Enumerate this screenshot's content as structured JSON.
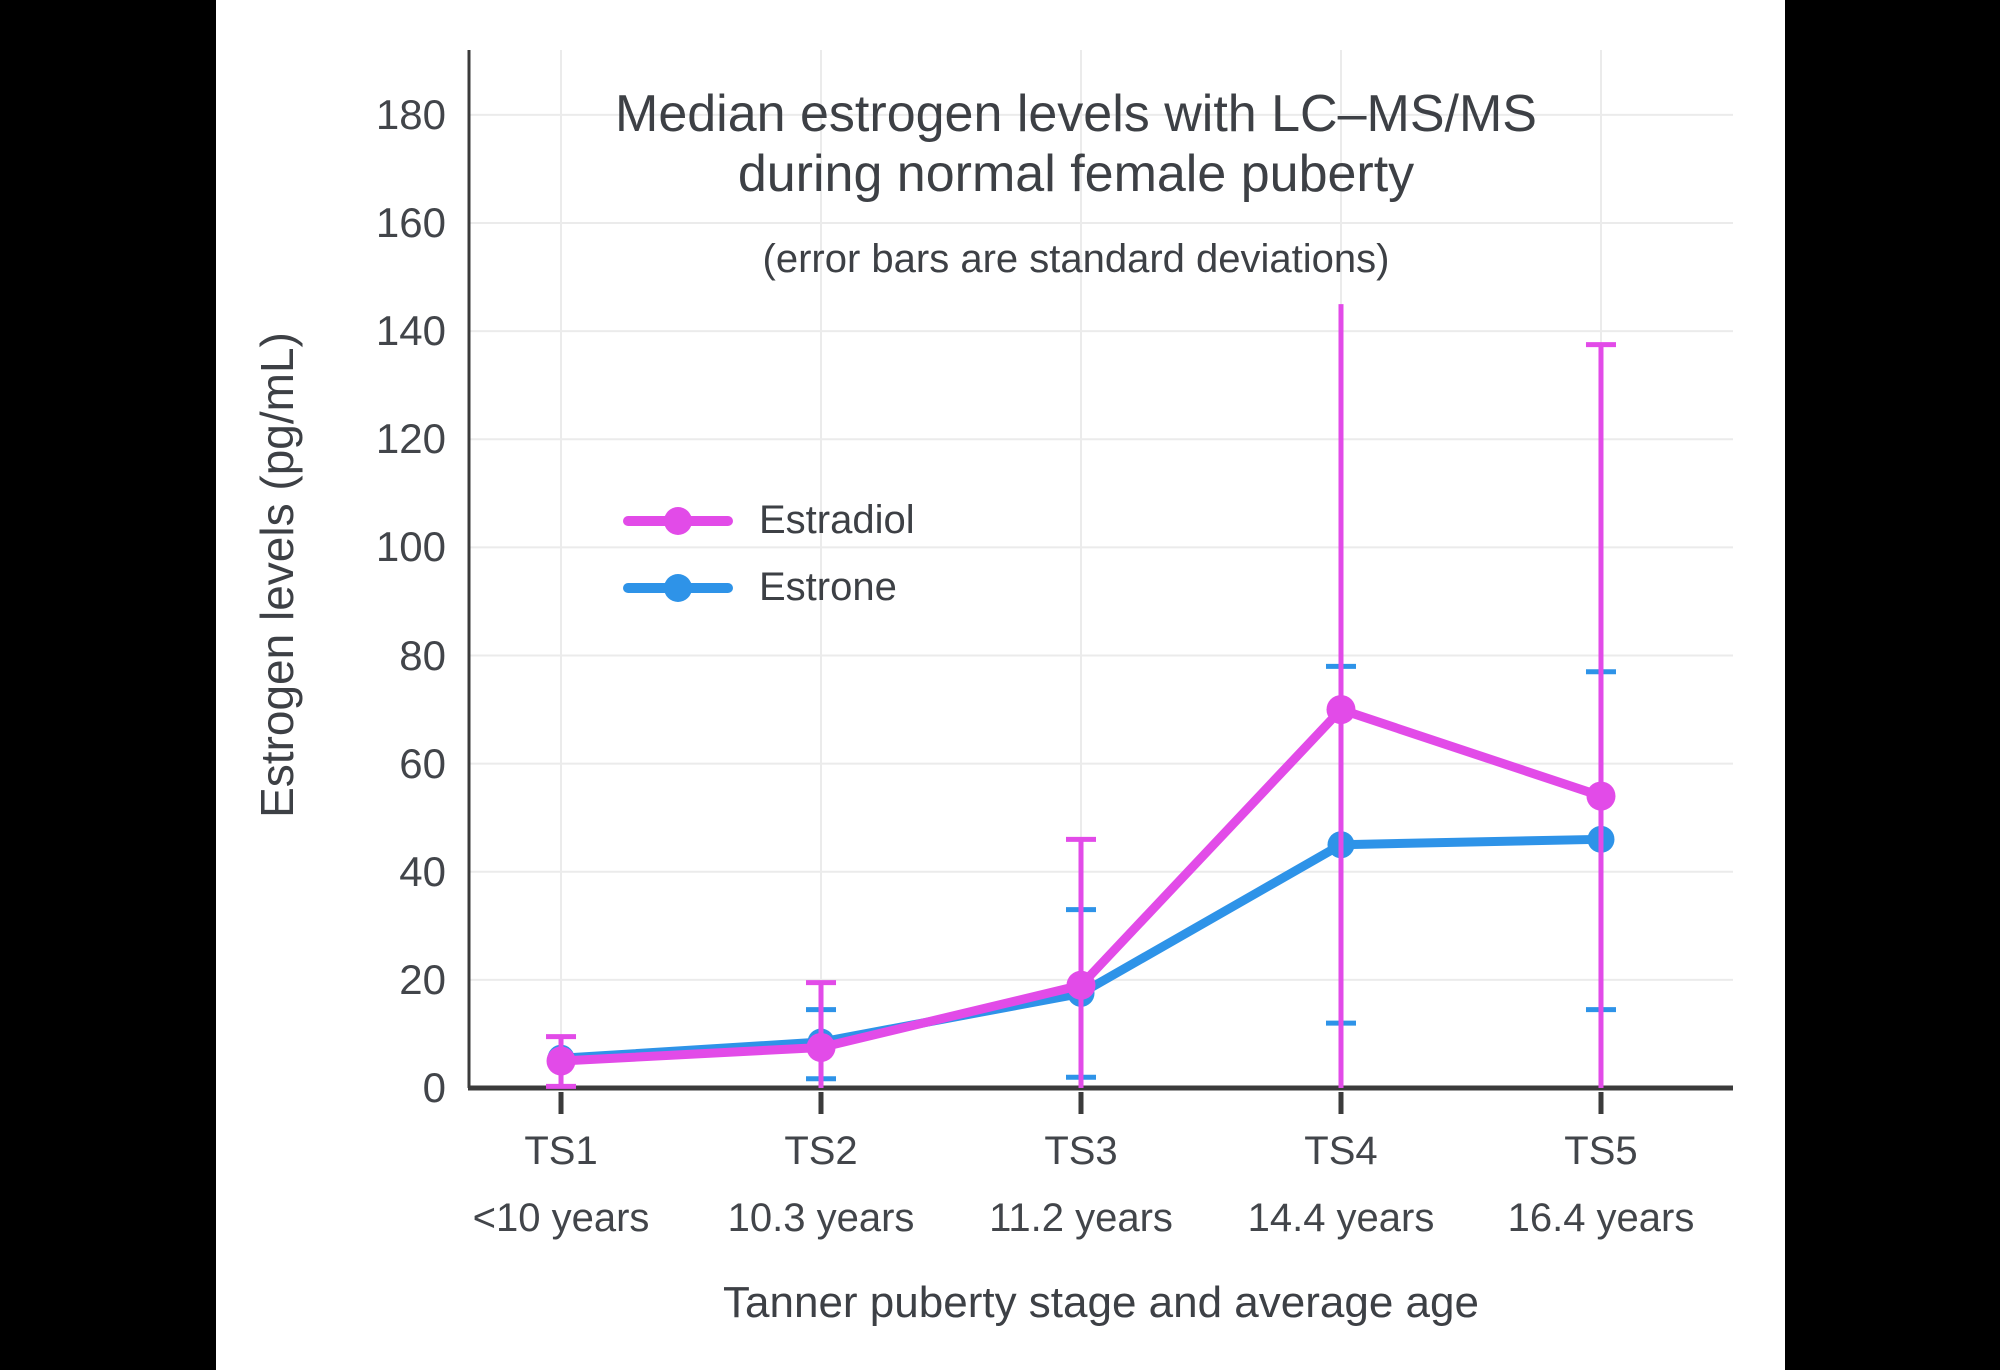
{
  "page": {
    "background": "#000000",
    "canvas_background": "#ffffff"
  },
  "chart_data": {
    "type": "line",
    "title_line1": "Median estrogen levels with LC–MS/MS",
    "title_line2": "during normal female puberty",
    "subtitle": "(error bars are standard deviations)",
    "xlabel": "Tanner puberty stage and average age",
    "ylabel": "Estrogen levels (pg/mL)",
    "categories": [
      {
        "stage": "TS1",
        "age": "<10 years"
      },
      {
        "stage": "TS2",
        "age": "10.3 years"
      },
      {
        "stage": "TS3",
        "age": "11.2 years"
      },
      {
        "stage": "TS4",
        "age": "14.4 years"
      },
      {
        "stage": "TS5",
        "age": "16.4 years"
      }
    ],
    "y_ticks": [
      0,
      20,
      40,
      60,
      80,
      100,
      120,
      140,
      160,
      180
    ],
    "ylim": [
      0,
      192
    ],
    "grid": true,
    "axis_color": "#3b3b3b",
    "gridline_color": "#ebebeb",
    "legend": {
      "position": "inside-left",
      "items": [
        {
          "label": "Estradiol",
          "color": "#e24be8"
        },
        {
          "label": "Estrone",
          "color": "#2e93e8"
        }
      ]
    },
    "series": [
      {
        "name": "Estrone",
        "color": "#2e93e8",
        "values": [
          5.5,
          8.5,
          17.5,
          45,
          46
        ],
        "error_bars": [
          null,
          {
            "upper": 14.5,
            "lower": 1.7,
            "upper_cap": true,
            "lower_cap": true
          },
          {
            "upper": 33,
            "lower": 2,
            "upper_cap": true,
            "lower_cap": true
          },
          {
            "upper": 78,
            "lower": 12,
            "upper_cap": true,
            "lower_cap": true
          },
          {
            "upper": 77,
            "lower": 14.5,
            "upper_cap": true,
            "lower_cap": true
          }
        ]
      },
      {
        "name": "Estradiol",
        "color": "#e24be8",
        "values": [
          5,
          7.5,
          19,
          70,
          54
        ],
        "error_bars": [
          {
            "upper": 9.5,
            "lower": 0.3,
            "upper_cap": true,
            "lower_cap": true
          },
          {
            "upper": 19.5,
            "lower": 0,
            "upper_cap": true,
            "lower_cap": false
          },
          {
            "upper": 46,
            "lower": 0,
            "upper_cap": true,
            "lower_cap": false
          },
          {
            "upper": 145,
            "lower": 0,
            "upper_cap": false,
            "lower_cap": false
          },
          {
            "upper": 137.5,
            "lower": 0,
            "upper_cap": true,
            "lower_cap": false
          }
        ]
      }
    ]
  }
}
